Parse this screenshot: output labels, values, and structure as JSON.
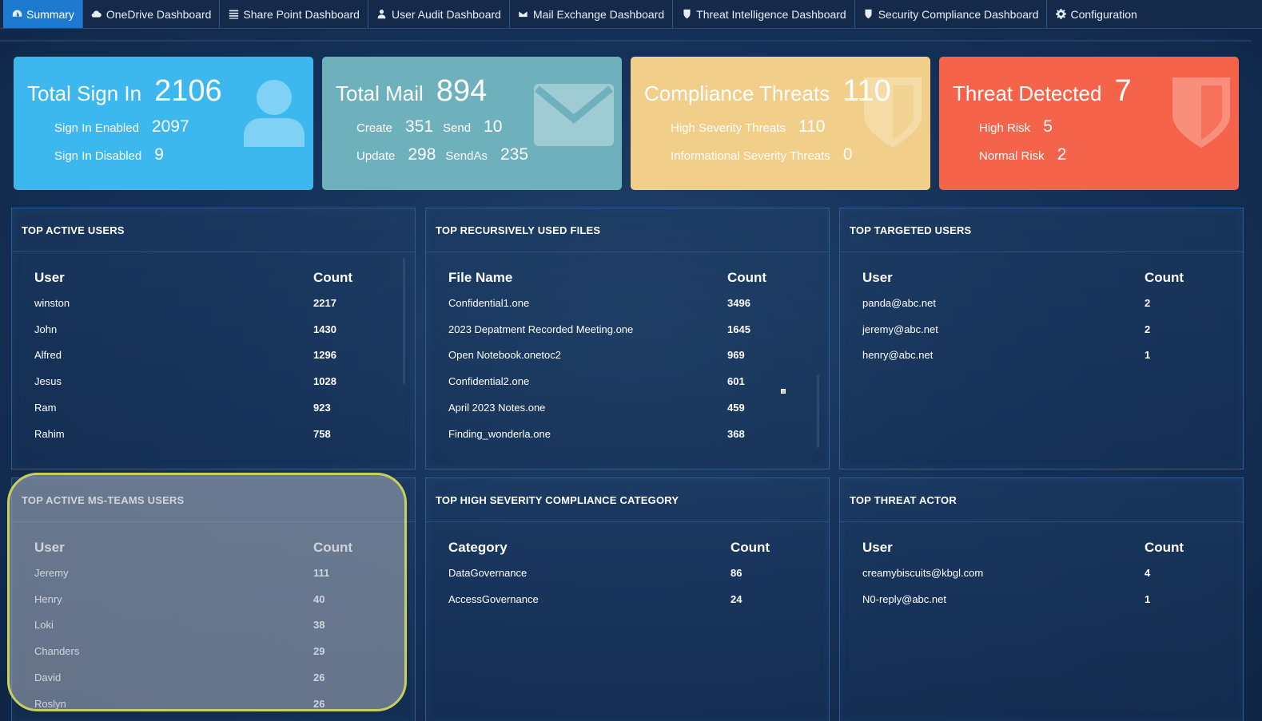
{
  "nav": {
    "tabs": [
      {
        "label": "Summary",
        "icon": "dashboard-icon"
      },
      {
        "label": "OneDrive Dashboard",
        "icon": "cloud-icon"
      },
      {
        "label": "Share Point Dashboard",
        "icon": "list-icon"
      },
      {
        "label": "User Audit Dashboard",
        "icon": "user-icon"
      },
      {
        "label": "Mail Exchange Dashboard",
        "icon": "envelope-icon"
      },
      {
        "label": "Threat Intelligence Dashboard",
        "icon": "shield-icon"
      },
      {
        "label": "Security Compliance Dashboard",
        "icon": "shield-icon"
      },
      {
        "label": "Configuration",
        "icon": "gear-icon"
      }
    ]
  },
  "cards": {
    "signin": {
      "title": "Total Sign In",
      "value": "2106",
      "enabled_label": "Sign In Enabled",
      "enabled_value": "2097",
      "disabled_label": "Sign In Disabled",
      "disabled_value": "9",
      "color": "#3db8ef"
    },
    "mail": {
      "title": "Total Mail",
      "value": "894",
      "create_label": "Create",
      "create_value": "351",
      "send_label": "Send",
      "send_value": "10",
      "update_label": "Update",
      "update_value": "298",
      "sendas_label": "SendAs",
      "sendas_value": "235",
      "color": "#6fb0bd"
    },
    "compliance": {
      "title": "Compliance Threats",
      "value": "110",
      "high_label": "High Severity Threats",
      "high_value": "110",
      "info_label": "Informational Severity Threats",
      "info_value": "0",
      "color": "#f1cf8b"
    },
    "threat": {
      "title": "Threat Detected",
      "value": "7",
      "high_label": "High Risk",
      "high_value": "5",
      "normal_label": "Normal Risk",
      "normal_value": "2",
      "color": "#f6634b"
    }
  },
  "panels": {
    "top_active_users": {
      "title": "TOP ACTIVE USERS",
      "headers": [
        "User",
        "Count"
      ],
      "rows": [
        [
          "winston",
          "2217"
        ],
        [
          "John",
          "1430"
        ],
        [
          "Alfred",
          "1296"
        ],
        [
          "Jesus",
          "1028"
        ],
        [
          "Ram",
          "923"
        ],
        [
          "Rahim",
          "758"
        ]
      ]
    },
    "top_files": {
      "title": "TOP RECURSIVELY USED FILES",
      "headers": [
        "File Name",
        "Count"
      ],
      "rows": [
        [
          "Confidential1.one",
          "3496"
        ],
        [
          "2023 Depatment Recorded Meeting.one",
          "1645"
        ],
        [
          "Open Notebook.onetoc2",
          "969"
        ],
        [
          "Confidential2.one",
          "601"
        ],
        [
          "April 2023 Notes.one",
          "459"
        ],
        [
          "Finding_wonderla.one",
          "368"
        ]
      ]
    },
    "top_targeted_users": {
      "title": "TOP TARGETED USERS",
      "headers": [
        "User",
        "Count"
      ],
      "rows": [
        [
          "panda@abc.net",
          "2"
        ],
        [
          "jeremy@abc.net",
          "2"
        ],
        [
          "henry@abc.net",
          "1"
        ]
      ]
    },
    "top_teams_users": {
      "title": "TOP ACTIVE MS-TEAMS USERS",
      "headers": [
        "User",
        "Count"
      ],
      "rows": [
        [
          "Jeremy",
          "111"
        ],
        [
          "Henry",
          "40"
        ],
        [
          "Loki",
          "38"
        ],
        [
          "Chanders",
          "29"
        ],
        [
          "David",
          "26"
        ],
        [
          "Roslyn",
          "26"
        ]
      ]
    },
    "top_compliance_category": {
      "title": "TOP HIGH SEVERITY COMPLIANCE CATEGORY",
      "headers": [
        "Category",
        "Count"
      ],
      "rows": [
        [
          "DataGovernance",
          "86"
        ],
        [
          "AccessGovernance",
          "24"
        ]
      ]
    },
    "top_threat_actor": {
      "title": "TOP THREAT ACTOR",
      "headers": [
        "User",
        "Count"
      ],
      "rows": [
        [
          "creamybiscuits@kbgl.com",
          "4"
        ],
        [
          "N0-reply@abc.net",
          "1"
        ]
      ]
    }
  }
}
